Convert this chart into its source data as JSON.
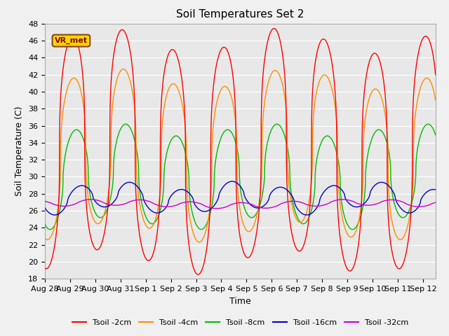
{
  "title": "Soil Temperatures Set 2",
  "xlabel": "Time",
  "ylabel": "Soil Temperature (C)",
  "ylim": [
    18,
    48
  ],
  "yticks": [
    18,
    20,
    22,
    24,
    26,
    28,
    30,
    32,
    34,
    36,
    38,
    40,
    42,
    44,
    46,
    48
  ],
  "num_days": 15.5,
  "date_labels": [
    "Aug 28",
    "Aug 29",
    "Aug 30",
    "Aug 31",
    "Sep 1",
    "Sep 2",
    "Sep 3",
    "Sep 4",
    "Sep 5",
    "Sep 6",
    "Sep 7",
    "Sep 8",
    "Sep 9",
    "Sep 10",
    "Sep 11",
    "Sep 12"
  ],
  "line_colors": [
    "#FF0000",
    "#FF8C00",
    "#00BB00",
    "#0000CC",
    "#CC00CC"
  ],
  "line_labels": [
    "Tsoil -2cm",
    "Tsoil -4cm",
    "Tsoil -8cm",
    "Tsoil -16cm",
    "Tsoil -32cm"
  ],
  "plot_bg_color": "#E8E8E8",
  "fig_bg_color": "#F0F0F0",
  "annotation_text": "VR_met",
  "annotation_box_color": "#FFD700",
  "annotation_text_color": "#8B0000",
  "grid_color": "#FFFFFF",
  "title_fontsize": 11,
  "axis_fontsize": 9,
  "tick_fontsize": 8,
  "legend_fontsize": 8
}
